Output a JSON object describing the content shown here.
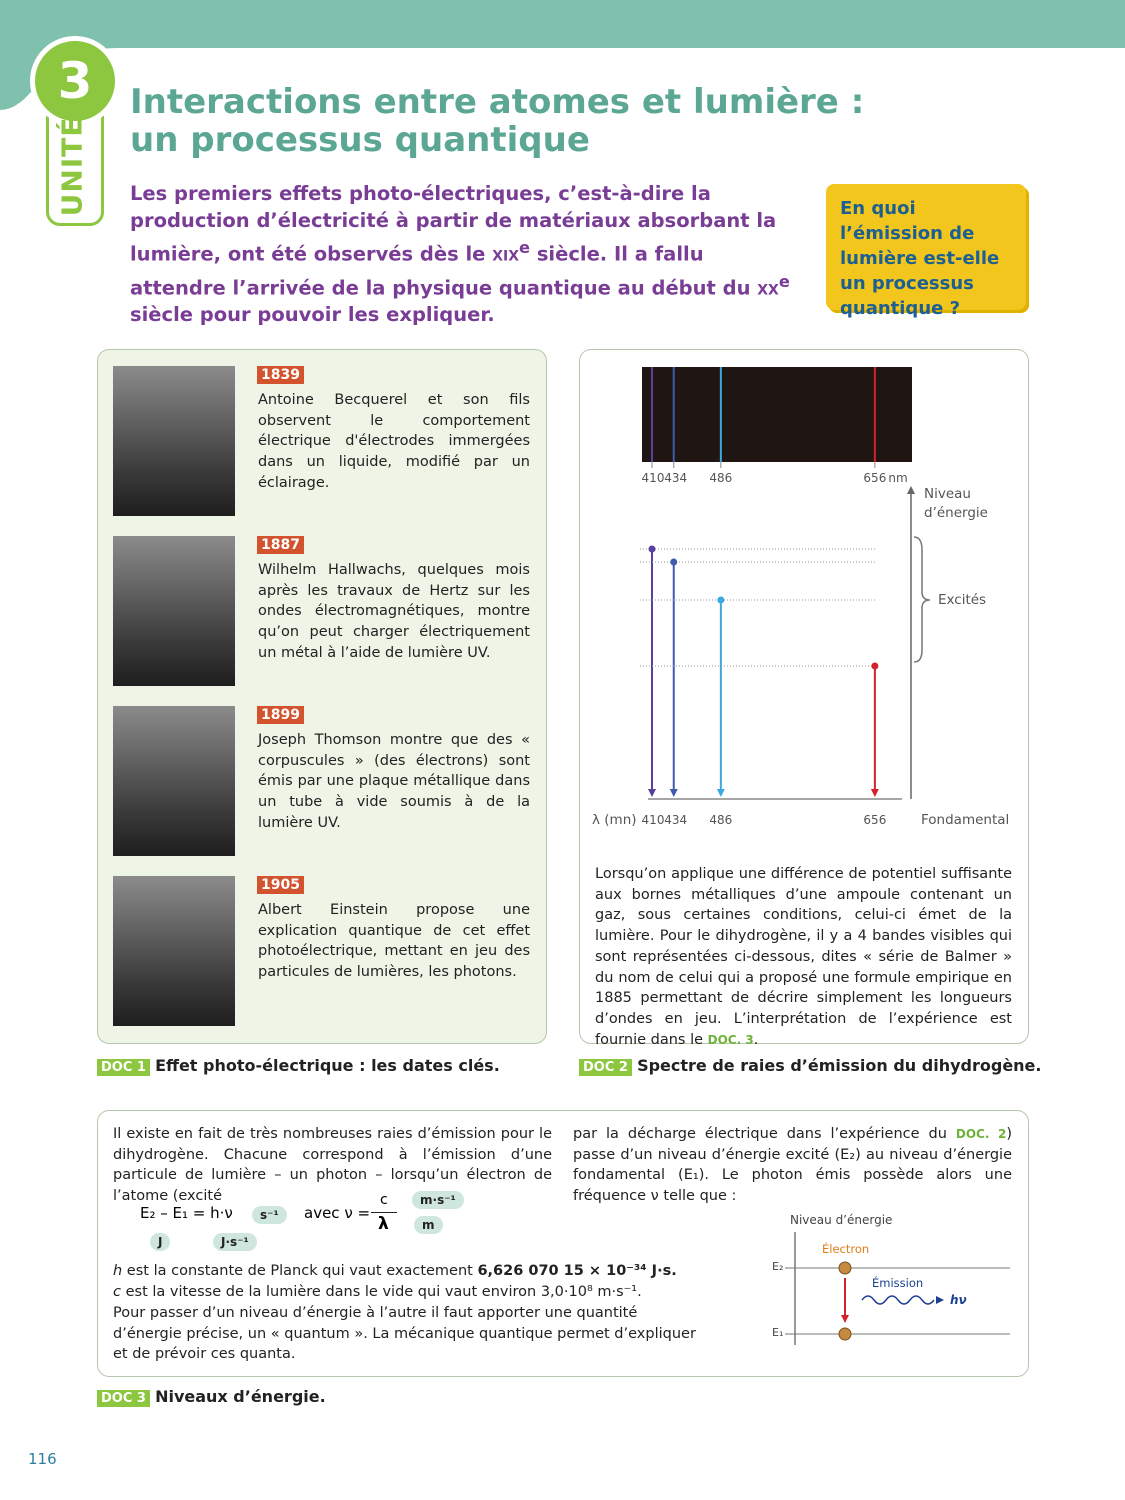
{
  "header": {
    "unit_number": "3",
    "unit_label": "UNITÉ",
    "title_line1": "Interactions entre atomes et lumière :",
    "title_line2": "un processus quantique",
    "intro": [
      "Les premiers effets photo-électriques, c’est-à-dire la production d’électricité à partir de matériaux absorbant la lumière, ont été observés dès le ",
      "xix",
      "e",
      " siècle. Il a fallu attendre l’arrivée de la physique quantique au début du ",
      "xx",
      "e",
      " siècle pour pouvoir les expliquer."
    ],
    "question": "En quoi l’émission de lumière est-elle un processus quantique ?"
  },
  "doc1": {
    "label": "DOC 1",
    "caption": "Effet photo-électrique : les dates clés.",
    "entries": [
      {
        "year": "1839",
        "text": "Antoine Becquerel et son fils observent le comportement électrique d'électrodes immergées dans un liquide, modifié par un éclairage."
      },
      {
        "year": "1887",
        "text": "Wilhelm Hallwachs, quelques mois après les travaux de Hertz sur les ondes électromagnétiques, montre qu’on peut charger électriquement un métal à l’aide de lumière UV."
      },
      {
        "year": "1899",
        "text": "Joseph Thomson montre que des « corpuscules » (des électrons) sont émis par une plaque métallique dans un tube à vide soumis à de la lumière UV."
      },
      {
        "year": "1905",
        "text": "Albert Einstein propose une explication quantique de cet effet photoélectrique, mettant en jeu des particules de lumières, les photons."
      }
    ]
  },
  "doc2": {
    "label": "DOC 2",
    "caption": "Spectre de raies d’émission du dihydrogène.",
    "lines": [
      410,
      434,
      486,
      656
    ],
    "line_colors": [
      "#5a3f9c",
      "#3f5cab",
      "#3ba9e0",
      "#d3222c"
    ],
    "spectrum_unit": "nm",
    "energy_axis": "Niveau d’énergie",
    "excited": "Excités",
    "ground": "Fondamental",
    "lambda_label": "λ (mn)",
    "text": [
      "Lorsqu’on applique une différence de potentiel suffisante aux bornes métalliques d’une ampoule contenant un gaz, sous certaines conditions, celui-ci émet de la lumière. Pour le dihydrogène, il y a 4 bandes visibles qui sont représentées ci-dessous, dites « série de Balmer » du nom de celui qui a proposé une formule empirique en 1885 permettant de décrire simplement les longueurs d’ondes en jeu. L’interprétation de l’expérience est fournie dans le ",
      "DOC. 3",
      "."
    ]
  },
  "doc3": {
    "label": "DOC 3",
    "caption": "Niveaux d’énergie.",
    "col1": "Il existe en fait de très nombreuses raies d’émission pour le dihydrogène. Chacune correspond à l’émission d’une particule de lumière – un photon – lorsqu’un électron de l’atome (excité",
    "col2": [
      "par la décharge électrique dans l’expérience du ",
      "DOC. 2",
      ") passe d’un niveau d’énergie excité (E₂) au niveau d’énergie fondamental (E₁). Le photon émis possède alors une fréquence ν telle que :"
    ],
    "formula1": "E₂ – E₁ = h·ν",
    "unit_energy": "J",
    "unit_freq": "s⁻¹",
    "unit_h": "J·s⁻¹",
    "avec": "avec ν =",
    "numerator": "c",
    "denominator": "λ",
    "unit_c": "m·s⁻¹",
    "unit_lambda": "m",
    "h_line": [
      "h",
      " est la constante de Planck qui vaut exactement ",
      "6,626 070 15 × 10⁻³⁴ J·s."
    ],
    "c_line": [
      "c",
      " est la vitesse de la lumière dans le vide qui vaut environ 3,0·10⁸ m·s⁻¹."
    ],
    "closing": "Pour passer d’un niveau d’énergie à l’autre il faut apporter une quantité d’énergie précise, un « quantum ». La mécanique quantique permet d’expliquer et de prévoir ces quanta.",
    "diagram": {
      "axis": "Niveau d’énergie",
      "electron": "Électron",
      "emission": "Émission",
      "e2": "E₂",
      "e1": "E₁",
      "photon": "hν"
    }
  },
  "page_number": "116"
}
